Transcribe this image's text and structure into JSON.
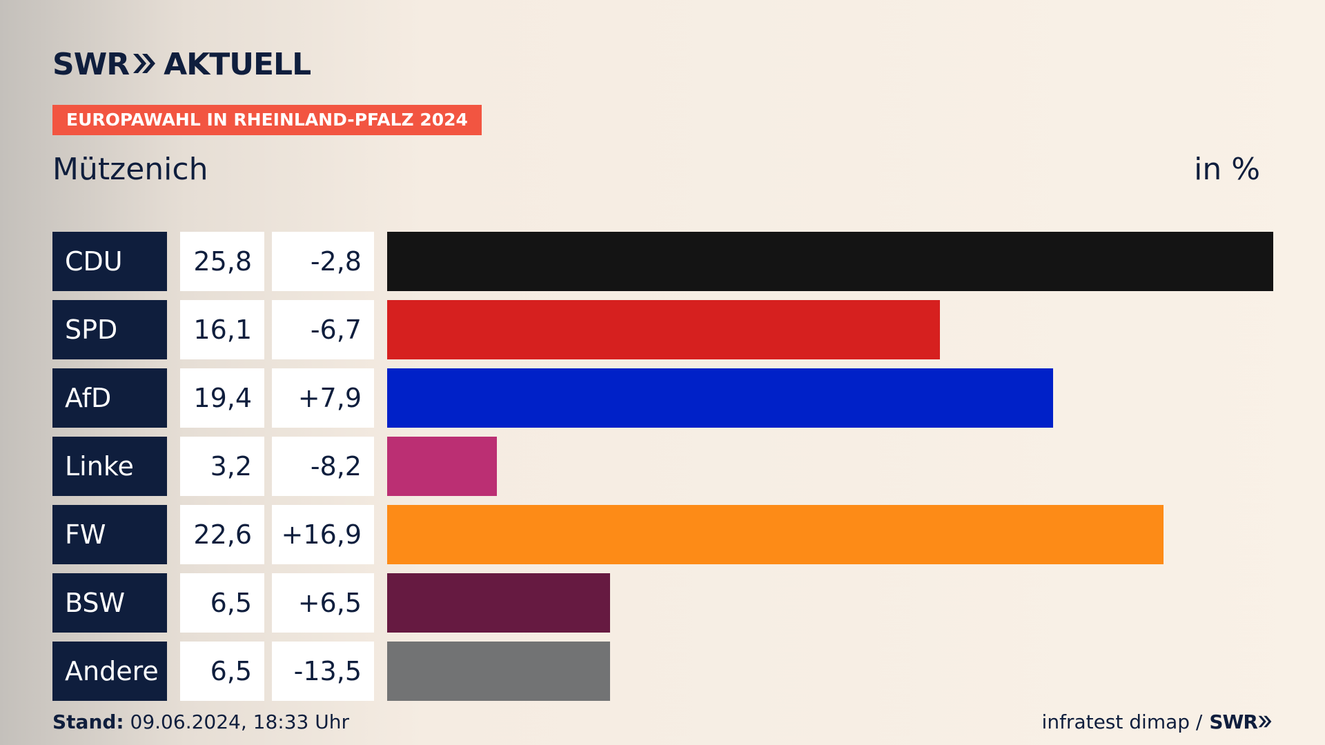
{
  "header": {
    "logo_swr": "SWR",
    "logo_aktuell": "AKTUELL",
    "tag": "EUROPAWAHL IN RHEINLAND-PFALZ 2024",
    "title": "Mützenich",
    "unit": "in %"
  },
  "chart_data": {
    "type": "bar",
    "orientation": "horizontal",
    "categories": [
      "CDU",
      "SPD",
      "AfD",
      "Linke",
      "FW",
      "BSW",
      "Andere"
    ],
    "values": [
      25.8,
      16.1,
      19.4,
      3.2,
      22.6,
      6.5,
      6.5
    ],
    "changes": [
      -2.8,
      -6.7,
      7.9,
      -8.2,
      16.9,
      6.5,
      -13.5
    ],
    "value_labels": [
      "25,8",
      "16,1",
      "19,4",
      "3,2",
      "22,6",
      "6,5",
      "6,5"
    ],
    "change_labels": [
      "-2,8",
      "-6,7",
      "+7,9",
      "-8,2",
      "+16,9",
      "+6,5",
      "-13,5"
    ],
    "colors": [
      "#141414",
      "#d6201f",
      "#0021c8",
      "#bb2f73",
      "#fd8b17",
      "#661a41",
      "#727374"
    ],
    "title": "Mützenich",
    "ylabel": "in %",
    "xlim": [
      0,
      25.8
    ],
    "grid": false
  },
  "footer": {
    "stand_label": "Stand:",
    "stand_value": "09.06.2024, 18:33 Uhr",
    "source": "infratest dimap /",
    "source_logo": "SWR"
  }
}
